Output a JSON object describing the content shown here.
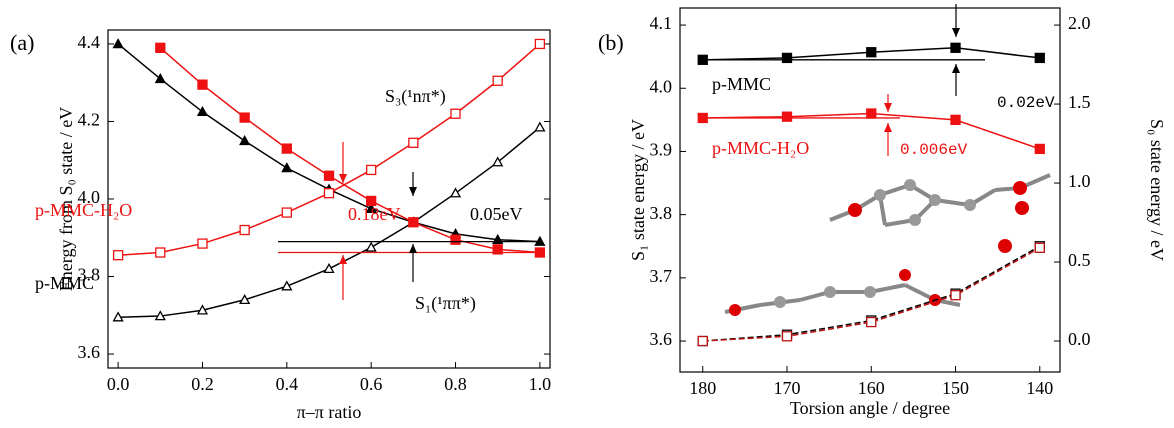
{
  "chart_data": [
    {
      "type": "line",
      "label": "(a)",
      "xlabel": "π–π ratio",
      "ylabel": "Energy from S₀ state / eV",
      "x": [
        0,
        0.1,
        0.2,
        0.3,
        0.4,
        0.5,
        0.6,
        0.7,
        0.8,
        0.9,
        1.0
      ],
      "xlim": [
        -0.024,
        1.024
      ],
      "ylim": [
        3.564,
        4.436
      ],
      "xticks": [
        {
          "value": 0,
          "label": "0.0"
        },
        0.2,
        0.4,
        0.6,
        0.8,
        {
          "value": 1,
          "label": "1.0"
        }
      ],
      "yticks": [
        3.6,
        3.8,
        {
          "value": 4,
          "label": "4.0"
        },
        4.2,
        4.4
      ],
      "series": [
        {
          "color": "#000000",
          "marker": "filled-triangle",
          "values": [
            4.4,
            4.31,
            4.225,
            4.15,
            4.08,
            4.025,
            3.975,
            3.94,
            3.91,
            3.895,
            3.89
          ]
        },
        {
          "color": "#000000",
          "marker": "open-triangle",
          "values": [
            3.695,
            3.698,
            3.713,
            3.74,
            3.775,
            3.82,
            3.875,
            3.94,
            4.015,
            4.095,
            4.185
          ]
        },
        {
          "color": "#ee1111",
          "marker": "filled-square",
          "values": [
            null,
            4.39,
            4.295,
            4.21,
            4.13,
            4.06,
            3.995,
            3.94,
            3.895,
            3.87,
            3.862
          ]
        },
        {
          "color": "#ee1111",
          "marker": "open-square",
          "values": [
            3.855,
            3.862,
            3.885,
            3.92,
            3.965,
            4.015,
            4.075,
            4.145,
            4.22,
            4.305,
            4.4
          ]
        }
      ],
      "annotations": [
        {
          "text": "S₃(¹nπ*)",
          "color": "#000000"
        },
        {
          "text": "p-MMC-H₂O",
          "color": "#ee1111"
        },
        {
          "text": "0.18eV",
          "color": "#ee1111"
        },
        {
          "text": "0.05eV",
          "color": "#000000"
        },
        {
          "text": "p-MMC",
          "color": "#000000"
        },
        {
          "text": "S₁(¹ππ*)",
          "color": "#000000"
        }
      ]
    },
    {
      "type": "line",
      "label": "(b)",
      "xlabel": "Torsion angle / degree",
      "ylabel": "S₁ state energy / eV",
      "y2label": "S₀ state energy / eV",
      "x": [
        180,
        170,
        160,
        150,
        140
      ],
      "xlim": [
        182.7,
        137.6
      ],
      "ylim": [
        3.551,
        4.127
      ],
      "y2lim": [
        -0.196,
        2.108
      ],
      "xticks": [
        180,
        170,
        160,
        150,
        140
      ],
      "yticks": [
        3.6,
        3.7,
        3.8,
        3.9,
        {
          "value": 4,
          "label": "4.0"
        },
        4.1
      ],
      "y2ticks": [
        {
          "value": 0,
          "label": "0.0"
        },
        0.5,
        {
          "value": 1,
          "label": "1.0"
        },
        1.5,
        {
          "value": 2,
          "label": "2.0"
        }
      ],
      "series": [
        {
          "color": "#000000",
          "marker": "filled-square",
          "values": [
            4.045,
            4.048,
            4.057,
            4.064,
            4.048
          ]
        },
        {
          "color": "#ee1111",
          "marker": "filled-square",
          "values": [
            3.953,
            3.955,
            3.96,
            3.95,
            3.904
          ]
        },
        {
          "color": "#000000",
          "marker": "open-square",
          "dashed": true,
          "axis": "y2",
          "values": [
            0.0,
            0.04,
            0.13,
            0.3,
            0.6
          ]
        },
        {
          "color": "#bb1111",
          "marker": "open-square",
          "dashed": true,
          "axis": "y2",
          "values": [
            0.0,
            0.03,
            0.12,
            0.29,
            0.59
          ]
        }
      ],
      "annotations": [
        {
          "text": "p-MMC",
          "color": "#000000"
        },
        {
          "text": "0.02eV",
          "color": "#000000"
        },
        {
          "text": "p-MMC-H₂O",
          "color": "#ee1111"
        },
        {
          "text": "0.006eV",
          "color": "#ee1111"
        }
      ]
    }
  ]
}
